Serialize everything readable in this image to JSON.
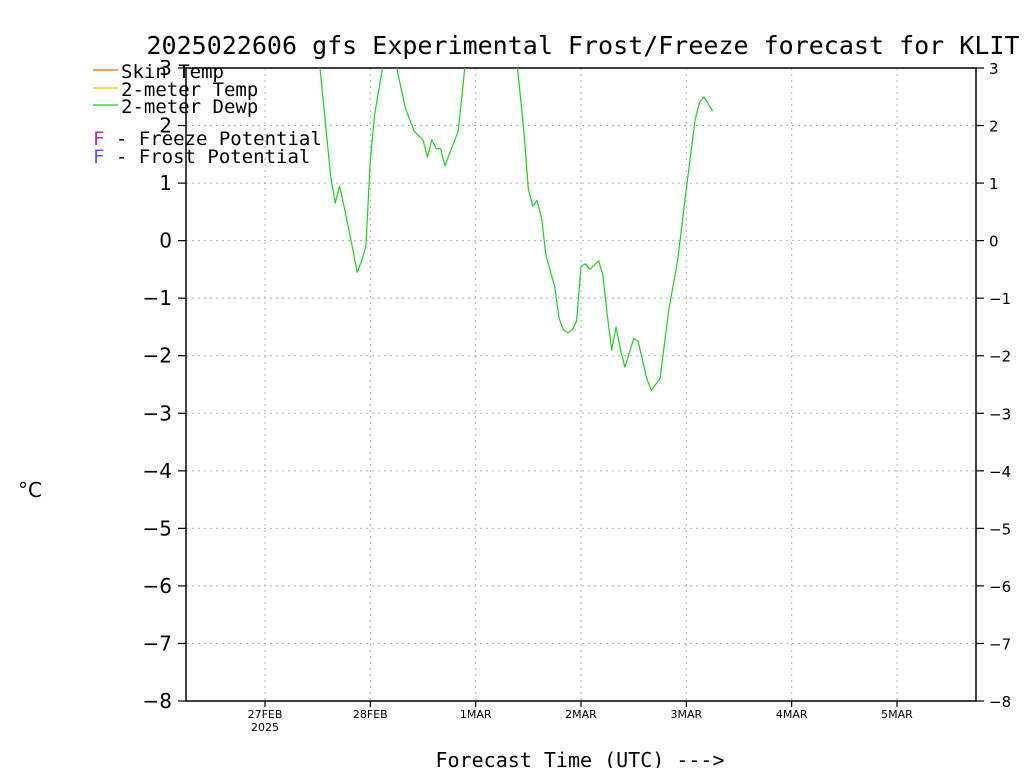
{
  "chart_data": {
    "type": "line",
    "title": "2025022606 gfs Experimental Frost/Freeze forecast for KLIT",
    "ylabel": "°C",
    "xlabel": "Forecast Time (UTC) --->",
    "ylim": [
      -8,
      3
    ],
    "xlim": [
      "2025-02-26T06:00Z",
      "2025-03-05T18:00Z"
    ],
    "yticks": [
      "−8",
      "−7",
      "−6",
      "−5",
      "−4",
      "−3",
      "−2",
      "−1",
      "0",
      "1",
      "2",
      "3"
    ],
    "xticks": [
      {
        "date": "2025-02-27T00:00Z",
        "label": "27FEB",
        "sublabel": "2025"
      },
      {
        "date": "2025-02-28T00:00Z",
        "label": "28FEB",
        "sublabel": ""
      },
      {
        "date": "2025-03-01T00:00Z",
        "label": "1MAR",
        "sublabel": ""
      },
      {
        "date": "2025-03-02T00:00Z",
        "label": "2MAR",
        "sublabel": ""
      },
      {
        "date": "2025-03-03T00:00Z",
        "label": "3MAR",
        "sublabel": ""
      },
      {
        "date": "2025-03-04T00:00Z",
        "label": "4MAR",
        "sublabel": ""
      },
      {
        "date": "2025-03-05T00:00Z",
        "label": "5MAR",
        "sublabel": ""
      }
    ],
    "grid": true,
    "legend": [
      {
        "label": "Skin Temp",
        "color": "#ff6a00",
        "marker": "line"
      },
      {
        "label": "2-meter Temp",
        "color": "#e8c800",
        "marker": "line"
      },
      {
        "label": "2-meter Dewp",
        "color": "#22cc22",
        "marker": "line"
      },
      {
        "label": "F - Freeze Potential",
        "color": "#cc2299",
        "marker": "F"
      },
      {
        "label": "F - Frost Potential",
        "color": "#5555ff",
        "marker": "F"
      }
    ],
    "series": [
      {
        "name": "2-meter Dewp",
        "color": "#22cc22",
        "points": [
          [
            "2025-02-27T12:00Z",
            3.4
          ],
          [
            "2025-02-27T15:00Z",
            1.1
          ],
          [
            "2025-02-27T16:00Z",
            0.65
          ],
          [
            "2025-02-27T17:00Z",
            0.95
          ],
          [
            "2025-02-27T18:00Z",
            0.6
          ],
          [
            "2025-02-27T20:00Z",
            -0.15
          ],
          [
            "2025-02-27T21:00Z",
            -0.55
          ],
          [
            "2025-02-27T22:00Z",
            -0.35
          ],
          [
            "2025-02-27T23:00Z",
            -0.1
          ],
          [
            "2025-02-28T00:00Z",
            1.4
          ],
          [
            "2025-02-28T01:00Z",
            2.2
          ],
          [
            "2025-02-28T03:00Z",
            3.1
          ],
          [
            "2025-02-28T05:00Z",
            3.1
          ],
          [
            "2025-02-28T06:00Z",
            3.0
          ],
          [
            "2025-02-28T08:00Z",
            2.3
          ],
          [
            "2025-02-28T10:00Z",
            1.9
          ],
          [
            "2025-02-28T12:00Z",
            1.75
          ],
          [
            "2025-02-28T13:00Z",
            1.45
          ],
          [
            "2025-02-28T14:00Z",
            1.75
          ],
          [
            "2025-02-28T15:00Z",
            1.6
          ],
          [
            "2025-02-28T16:00Z",
            1.6
          ],
          [
            "2025-02-28T17:00Z",
            1.3
          ],
          [
            "2025-02-28T18:00Z",
            1.5
          ],
          [
            "2025-02-28T20:00Z",
            1.9
          ],
          [
            "2025-02-28T21:00Z",
            2.6
          ],
          [
            "2025-02-28T22:00Z",
            3.4
          ],
          [
            "2025-03-01T09:00Z",
            3.4
          ],
          [
            "2025-03-01T11:00Z",
            1.9
          ],
          [
            "2025-03-01T12:00Z",
            0.9
          ],
          [
            "2025-03-01T13:00Z",
            0.6
          ],
          [
            "2025-03-01T14:00Z",
            0.7
          ],
          [
            "2025-03-01T15:00Z",
            0.4
          ],
          [
            "2025-03-01T16:00Z",
            -0.25
          ],
          [
            "2025-03-01T18:00Z",
            -0.8
          ],
          [
            "2025-03-01T19:00Z",
            -1.35
          ],
          [
            "2025-03-01T20:00Z",
            -1.55
          ],
          [
            "2025-03-01T21:00Z",
            -1.6
          ],
          [
            "2025-03-01T22:00Z",
            -1.55
          ],
          [
            "2025-03-01T23:00Z",
            -1.4
          ],
          [
            "2025-03-02T00:00Z",
            -0.45
          ],
          [
            "2025-03-02T01:00Z",
            -0.4
          ],
          [
            "2025-03-02T02:00Z",
            -0.5
          ],
          [
            "2025-03-02T04:00Z",
            -0.35
          ],
          [
            "2025-03-02T05:00Z",
            -0.6
          ],
          [
            "2025-03-02T06:00Z",
            -1.3
          ],
          [
            "2025-03-02T07:00Z",
            -1.9
          ],
          [
            "2025-03-02T08:00Z",
            -1.5
          ],
          [
            "2025-03-02T09:00Z",
            -1.9
          ],
          [
            "2025-03-02T10:00Z",
            -2.2
          ],
          [
            "2025-03-02T12:00Z",
            -1.7
          ],
          [
            "2025-03-02T13:00Z",
            -1.75
          ],
          [
            "2025-03-02T15:00Z",
            -2.4
          ],
          [
            "2025-03-02T16:00Z",
            -2.6
          ],
          [
            "2025-03-02T18:00Z",
            -2.4
          ],
          [
            "2025-03-02T20:00Z",
            -1.2
          ],
          [
            "2025-03-02T22:00Z",
            -0.35
          ],
          [
            "2025-03-03T00:00Z",
            0.9
          ],
          [
            "2025-03-03T02:00Z",
            2.1
          ],
          [
            "2025-03-03T03:00Z",
            2.4
          ],
          [
            "2025-03-03T04:00Z",
            2.5
          ],
          [
            "2025-03-03T06:00Z",
            2.25
          ]
        ]
      }
    ]
  }
}
